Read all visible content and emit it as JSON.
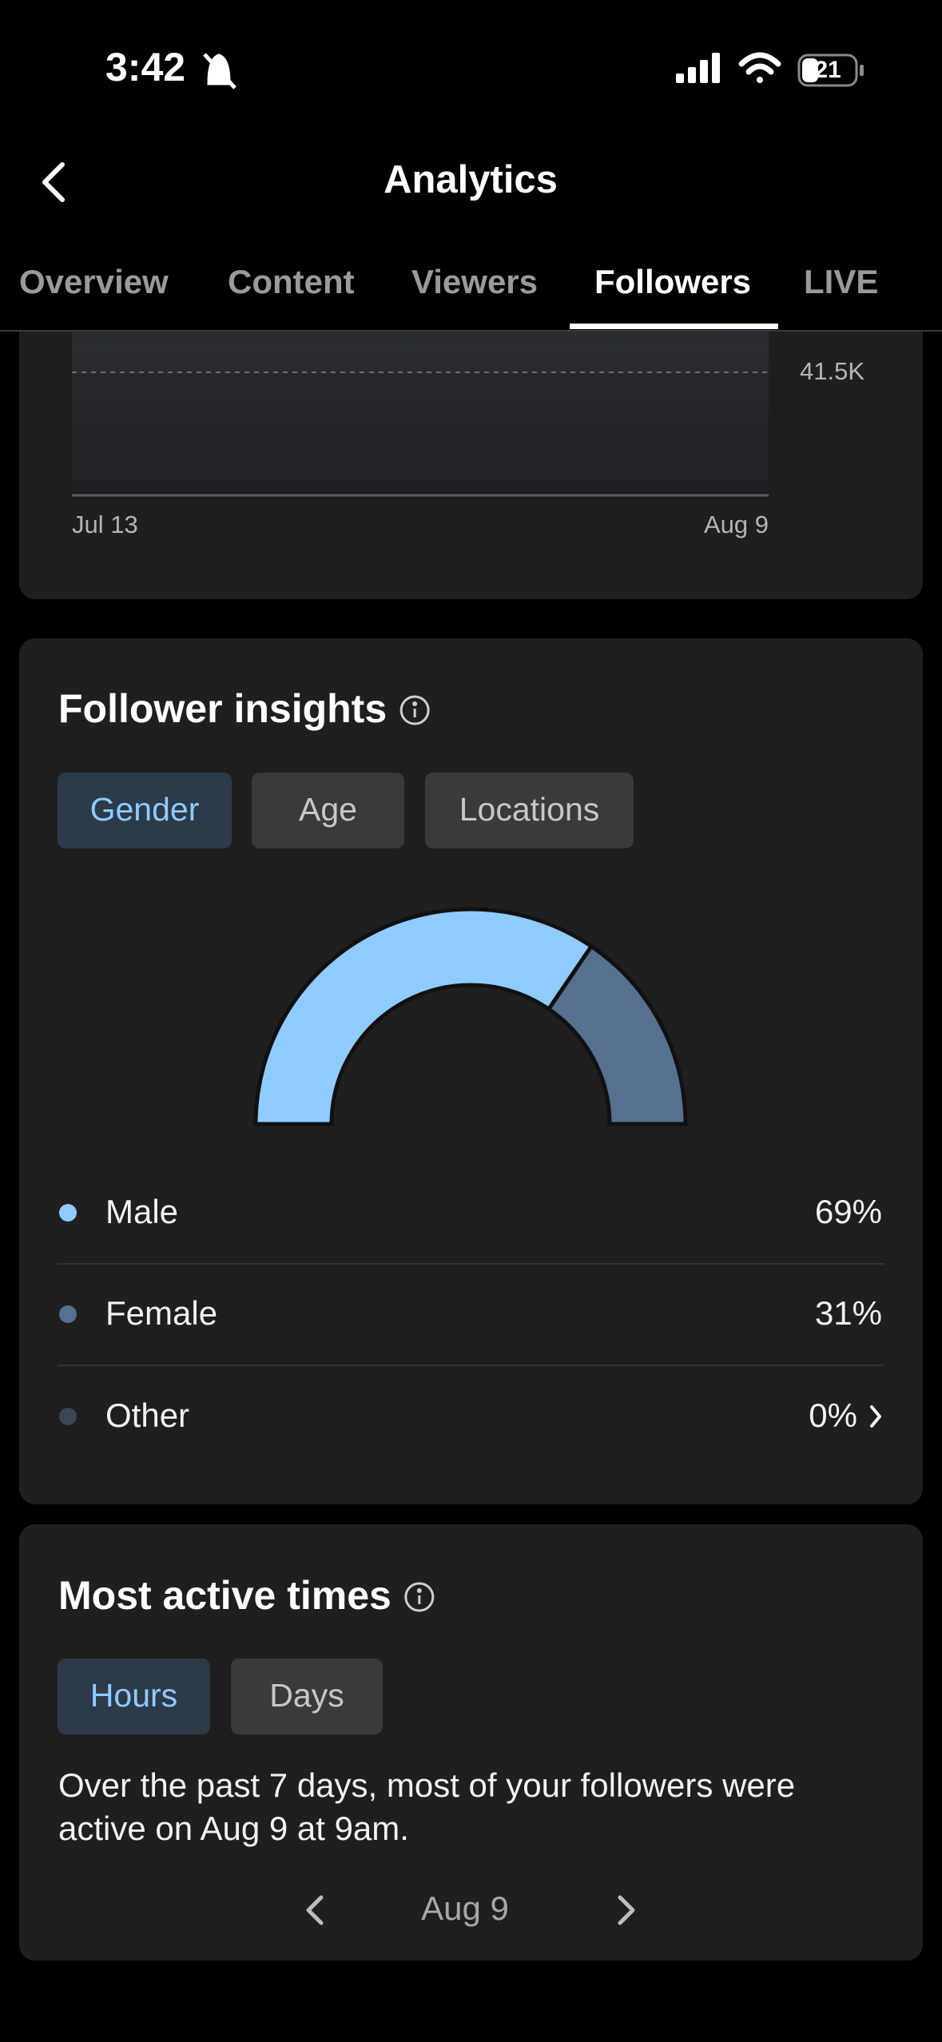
{
  "status_bar": {
    "time": "3:42",
    "battery": "21"
  },
  "header": {
    "title": "Analytics"
  },
  "tabs": [
    "Overview",
    "Content",
    "Viewers",
    "Followers",
    "LIVE"
  ],
  "followers_chart": {
    "x_labels": [
      "Jul 13",
      "Aug 9"
    ],
    "y_label": "41.5K"
  },
  "follower_insights": {
    "title": "Follower insights",
    "filters": [
      "Gender",
      "Age",
      "Locations"
    ],
    "chart_data": {
      "type": "donut",
      "categories": [
        "Male",
        "Female",
        "Other"
      ],
      "values": [
        69,
        31,
        0
      ],
      "value_labels": [
        "69%",
        "31%",
        "0%"
      ],
      "colors": [
        "#8fcbff",
        "#56708f",
        "#3a4658"
      ]
    }
  },
  "most_active_times": {
    "title": "Most active times",
    "filters": [
      "Hours",
      "Days"
    ],
    "description": "Over the past 7 days, most of your followers were active on Aug 9 at 9am.",
    "date": "Aug 9"
  }
}
